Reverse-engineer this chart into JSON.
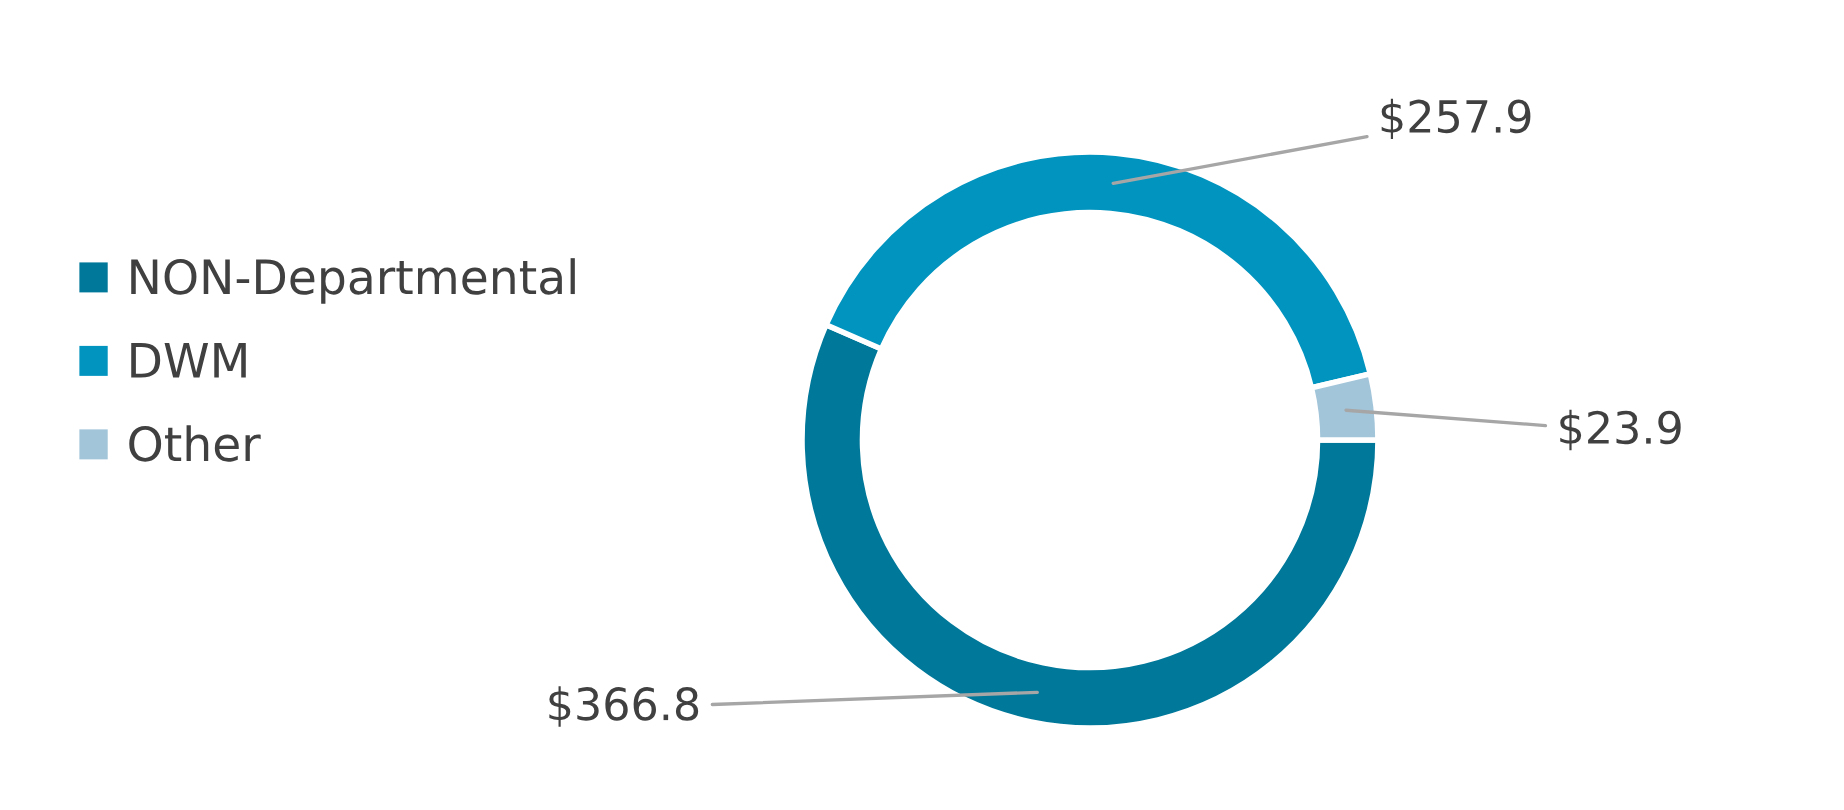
{
  "chart_data": {
    "type": "donut",
    "categories": [
      "NON-Departmental",
      "DWM",
      "Other"
    ],
    "values": [
      366.8,
      257.9,
      23.9
    ],
    "colors": [
      "#00789a",
      "#0094bf",
      "#a2c5da"
    ],
    "value_labels": [
      "$366.8",
      "$257.9",
      "$23.9"
    ],
    "legend": "left"
  }
}
